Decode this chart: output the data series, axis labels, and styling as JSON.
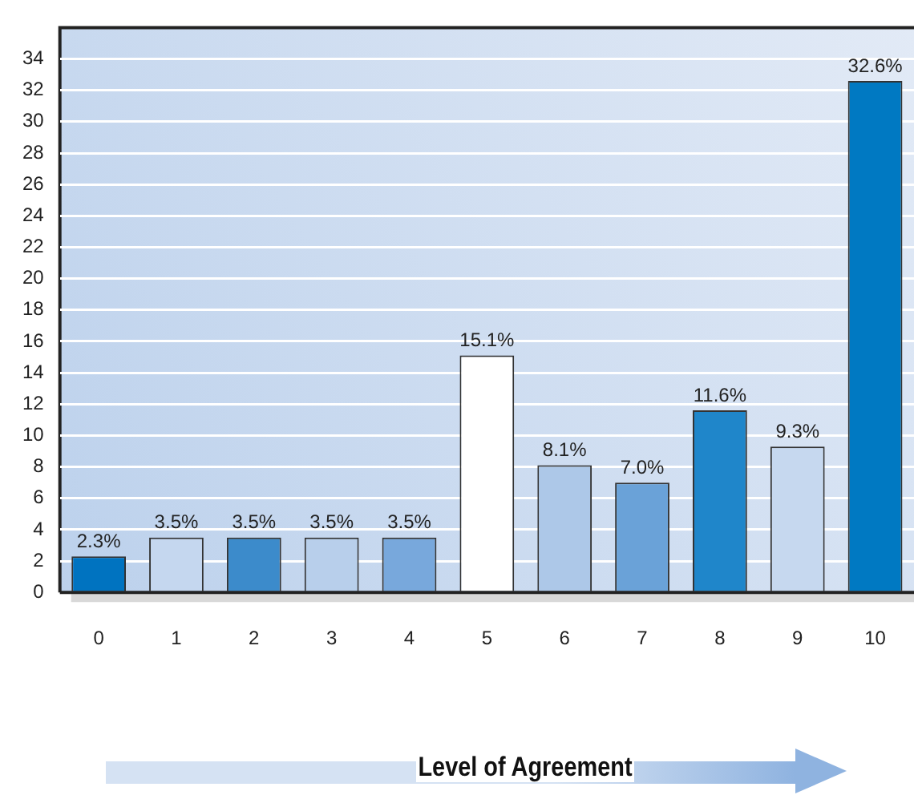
{
  "chart_data": {
    "type": "bar",
    "xlabel": "Level of Agreement",
    "categories": [
      "0",
      "1",
      "2",
      "3",
      "4",
      "5",
      "6",
      "7",
      "8",
      "9",
      "10"
    ],
    "values": [
      2.3,
      3.5,
      3.5,
      3.5,
      3.5,
      15.1,
      8.1,
      7.0,
      11.6,
      9.3,
      32.6
    ],
    "colors": [
      "#0073c0",
      "#c5d7ef",
      "#3c8bcb",
      "#b8cfeb",
      "#78a8dc",
      "#ffffff",
      "#adc8e8",
      "#6aa2d8",
      "#1f86ca",
      "#c6d8ef",
      "#0079c2"
    ],
    "value_labels": [
      "2.3%",
      "3.5%",
      "3.5%",
      "3.5%",
      "3.5%",
      "15.1%",
      "8.1%",
      "7.0%",
      "11.6%",
      "9.3%",
      "32.6%"
    ],
    "ylim": [
      0,
      36
    ],
    "yticks": [
      0,
      2,
      4,
      6,
      8,
      10,
      12,
      14,
      16,
      18,
      20,
      22,
      24,
      26,
      28,
      30,
      32,
      34
    ],
    "grid": "y",
    "legend": false
  }
}
